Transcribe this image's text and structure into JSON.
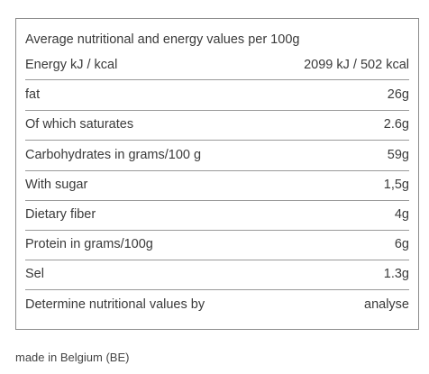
{
  "header": {
    "title": "Average nutritional and energy values per 100g"
  },
  "table": {
    "rows": [
      [
        "Energy kJ / kcal",
        "2099 kJ / 502 kcal"
      ],
      [
        "fat",
        "26g"
      ],
      [
        "Of which saturates",
        "2.6g"
      ],
      [
        "Carbohydrates in grams/100 g",
        "59g"
      ],
      [
        "With sugar",
        "1,5g"
      ],
      [
        "Dietary fiber",
        "4g"
      ],
      [
        "Protein in grams/100g",
        "6g"
      ],
      [
        "Sel",
        "1.3g"
      ],
      [
        "Determine nutritional values by",
        "analyse"
      ]
    ]
  },
  "footer": {
    "text": "made in Belgium (BE)"
  }
}
